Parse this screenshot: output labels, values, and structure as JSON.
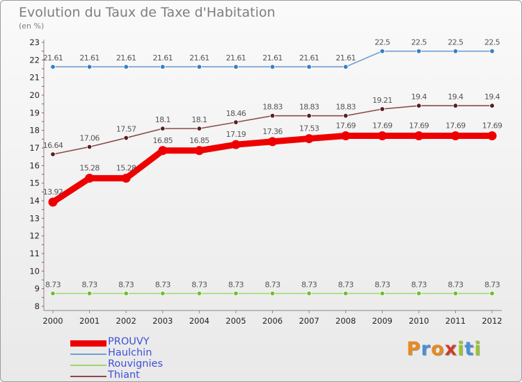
{
  "title": "Evolution du Taux de Taxe d'Habitation",
  "subtitle": "(en %)",
  "logo": {
    "text": "Proxiti",
    "colors": [
      "#e98a1d",
      "#4a8fd8",
      "#e98a1d",
      "#d23a2a",
      "#9bc42b",
      "#4a8fd8",
      "#9bc42b"
    ]
  },
  "chart_data": {
    "type": "line",
    "title": "Evolution du Taux de Taxe d'Habitation",
    "ylabel": "(en %)",
    "x": [
      "2000",
      "2001",
      "2002",
      "2003",
      "2004",
      "2005",
      "2006",
      "2007",
      "2008",
      "2009",
      "2010",
      "2011",
      "2012"
    ],
    "ylim": [
      8,
      23
    ],
    "yticks": [
      8,
      9,
      10,
      11,
      12,
      13,
      14,
      15,
      16,
      17,
      18,
      19,
      20,
      21,
      22,
      23
    ],
    "grid": false,
    "legend_position": "bottom-left",
    "series": [
      {
        "name": "Haulchin",
        "color": "#6fa0d0",
        "point_color": "#3a7fbf",
        "values": [
          21.61,
          21.61,
          21.61,
          21.61,
          21.61,
          21.61,
          21.61,
          21.61,
          21.61,
          22.5,
          22.5,
          22.5,
          22.5
        ],
        "labels": [
          "21.61",
          "21.61",
          "21.61",
          "21.61",
          "21.61",
          "21.61",
          "21.61",
          "21.61",
          "21.61",
          "22.5",
          "22.5",
          "22.5",
          "22.5"
        ],
        "emphasis": false
      },
      {
        "name": "Thiant",
        "color": "#8a4a4a",
        "point_color": "#5a1f1f",
        "values": [
          16.64,
          17.06,
          17.57,
          18.1,
          18.1,
          18.46,
          18.83,
          18.83,
          18.83,
          19.21,
          19.4,
          19.4,
          19.4
        ],
        "labels": [
          "16.64",
          "17.06",
          "17.57",
          "18.1",
          "18.1",
          "18.46",
          "18.83",
          "18.83",
          "18.83",
          "19.21",
          "19.4",
          "19.4",
          "19.4"
        ],
        "emphasis": false
      },
      {
        "name": "PROUVY",
        "color": "#ee0000",
        "point_color": "#ee0000",
        "values": [
          13.92,
          15.28,
          15.28,
          16.85,
          16.85,
          17.19,
          17.36,
          17.53,
          17.69,
          17.69,
          17.69,
          17.69,
          17.69
        ],
        "labels": [
          "13.92",
          "15.28",
          "15.28",
          "16.85",
          "16.85",
          "17.19",
          "17.36",
          "17.53",
          "17.69",
          "17.69",
          "17.69",
          "17.69",
          "17.69"
        ],
        "emphasis": true
      },
      {
        "name": "Rouvignies",
        "color": "#9ed86a",
        "point_color": "#6cc12e",
        "values": [
          8.73,
          8.73,
          8.73,
          8.73,
          8.73,
          8.73,
          8.73,
          8.73,
          8.73,
          8.73,
          8.73,
          8.73,
          8.73
        ],
        "labels": [
          "8.73",
          "8.73",
          "8.73",
          "8.73",
          "8.73",
          "8.73",
          "8.73",
          "8.73",
          "8.73",
          "8.73",
          "8.73",
          "8.73",
          "8.73"
        ],
        "emphasis": false
      }
    ],
    "legend": [
      "PROUVY",
      "Haulchin",
      "Rouvignies",
      "Thiant"
    ]
  }
}
